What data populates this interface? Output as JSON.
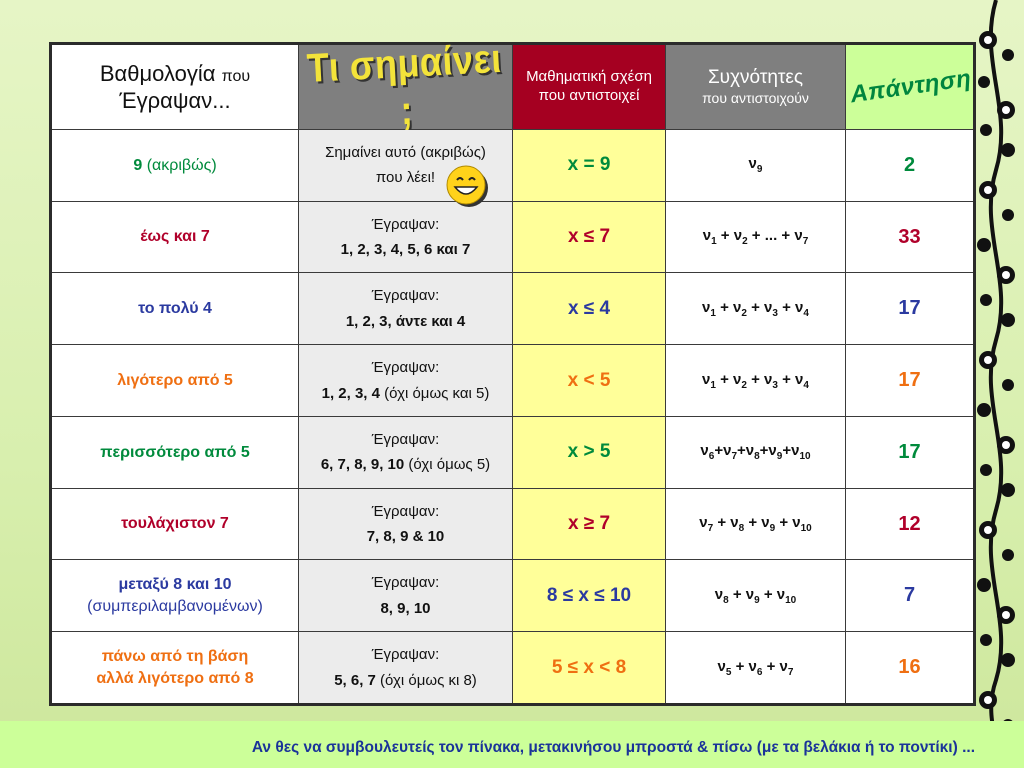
{
  "header": {
    "score_main": "Βαθμολογία",
    "score_small": "που",
    "score_line2": "Έγραψαν...",
    "meaning": "Τι σημαίνει ;",
    "math": "Μαθηματική σχέση που αντιστοιχεί",
    "freq_main": "Συχνότητες",
    "freq_small": "που αντιστοιχούν",
    "answer": "Απάντηση"
  },
  "rows": [
    {
      "score": "9",
      "score_extra": "(ακριβώς)",
      "meaning_line1": "Σημαίνει αυτό (ακριβώς)",
      "meaning_line2": "που λέει!",
      "meaning_note": "",
      "math": "x = 9",
      "freq": "ν9",
      "answer": "2",
      "color": "#008a3c"
    },
    {
      "score": "έως και 7",
      "score_extra": "",
      "meaning_line1": "Έγραψαν:",
      "meaning_line2": "1, 2, 3, 4, 5, 6 και 7",
      "meaning_note": "",
      "math": "x ≤ 7",
      "freq": "ν1 + ν2 + ... + ν7",
      "answer": "33",
      "color": "#b0002a"
    },
    {
      "score": "το πολύ 4",
      "score_extra": "",
      "meaning_line1": "Έγραψαν:",
      "meaning_line2": "1, 2, 3, άντε και 4",
      "meaning_note": "",
      "math": "x ≤ 4",
      "freq": "ν1 + ν2 + ν3 + ν4",
      "answer": "17",
      "color": "#2b3aa0"
    },
    {
      "score": "λιγότερο από 5",
      "score_extra": "",
      "meaning_line1": "Έγραψαν:",
      "meaning_line2": "1, 2, 3, 4",
      "meaning_note": " (όχι όμως και 5)",
      "math": "x < 5",
      "freq": "ν1 + ν2 + ν3 + ν4",
      "answer": "17",
      "color": "#ef6f12"
    },
    {
      "score": "περισσότερο από 5",
      "score_extra": "",
      "meaning_line1": "Έγραψαν:",
      "meaning_line2": "6, 7, 8, 9, 10",
      "meaning_note": " (όχι όμως 5)",
      "math": "x > 5",
      "freq": "ν6+ν7+ν8+ν9+ν10",
      "answer": "17",
      "color": "#008a3c"
    },
    {
      "score": "τουλάχιστον 7",
      "score_extra": "",
      "meaning_line1": "Έγραψαν:",
      "meaning_line2": "7, 8, 9 & 10",
      "meaning_note": "",
      "math": "x ≥ 7",
      "freq": "ν7 + ν8 + ν9 + ν10",
      "answer": "12",
      "color": "#b0002a"
    },
    {
      "score": "μεταξύ 8 και 10",
      "score_extra": "(συμπεριλαμβανομένων)",
      "meaning_line1": "Έγραψαν:",
      "meaning_line2": "8, 9, 10",
      "meaning_note": "",
      "math": "8 ≤ x ≤ 10",
      "freq": "ν8 + ν9 + ν10",
      "answer": "7",
      "color": "#2b3aa0"
    },
    {
      "score": "πάνω από τη βάση",
      "score_extra": "αλλά λιγότερο από 8",
      "meaning_line1": "Έγραψαν:",
      "meaning_line2": "5, 6, 7",
      "meaning_note": " (όχι όμως κι 8)",
      "math": "5 ≤ x < 8",
      "freq": "ν5 + ν6 + ν7",
      "answer": "16",
      "color": "#ef6f12"
    }
  ],
  "footer": {
    "text": "Αν θες να συμβουλευτείς τον πίνακα, μετακινήσου μπροστά & πίσω (με τα βελάκια ή το ποντίκι) ..."
  },
  "icons": {
    "smiley": "smiley-icon",
    "vine": "vine-decoration-icon"
  }
}
